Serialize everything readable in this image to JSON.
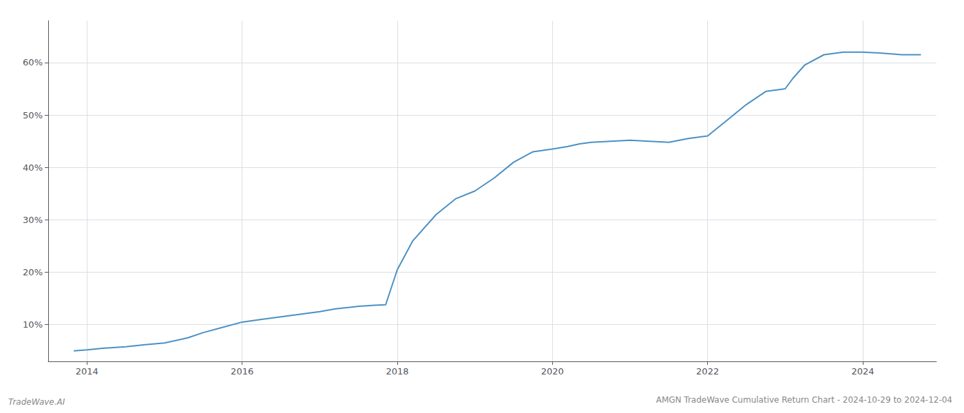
{
  "chart_data": {
    "type": "line",
    "title": "AMGN TradeWave Cumulative Return Chart - 2024-10-29 to 2024-12-04",
    "annotations": [
      "TradeWave.AI"
    ],
    "x": [
      2013.83,
      2014.0,
      2014.2,
      2014.5,
      2014.75,
      2015.0,
      2015.3,
      2015.5,
      2015.75,
      2016.0,
      2016.25,
      2016.5,
      2016.75,
      2017.0,
      2017.2,
      2017.5,
      2017.7,
      2017.85,
      2018.0,
      2018.2,
      2018.5,
      2018.75,
      2019.0,
      2019.25,
      2019.5,
      2019.75,
      2020.0,
      2020.2,
      2020.35,
      2020.5,
      2020.75,
      2021.0,
      2021.25,
      2021.5,
      2021.75,
      2022.0,
      2022.25,
      2022.5,
      2022.75,
      2023.0,
      2023.1,
      2023.25,
      2023.5,
      2023.75,
      2024.0,
      2024.25,
      2024.5,
      2024.75
    ],
    "values": [
      5.0,
      5.2,
      5.5,
      5.8,
      6.2,
      6.5,
      7.5,
      8.5,
      9.5,
      10.5,
      11.0,
      11.5,
      12.0,
      12.5,
      13.0,
      13.5,
      13.7,
      13.8,
      20.5,
      26.0,
      31.0,
      34.0,
      35.5,
      38.0,
      41.0,
      43.0,
      43.5,
      44.0,
      44.5,
      44.8,
      45.0,
      45.2,
      45.0,
      44.8,
      45.5,
      46.0,
      49.0,
      52.0,
      54.5,
      55.0,
      57.0,
      59.5,
      61.5,
      62.0,
      62.0,
      61.8,
      61.5,
      61.5
    ],
    "color": "#4a90c4",
    "xlim": [
      2013.5,
      2024.95
    ],
    "xticks": [
      2014,
      2016,
      2018,
      2020,
      2022,
      2024
    ],
    "ylim": [
      3.0,
      68.0
    ],
    "yticks": [
      {
        "value": 10,
        "label": "10%"
      },
      {
        "value": 20,
        "label": "20%"
      },
      {
        "value": 30,
        "label": "30%"
      },
      {
        "value": 40,
        "label": "40%"
      },
      {
        "value": 50,
        "label": "50%"
      },
      {
        "value": 60,
        "label": "60%"
      }
    ],
    "grid": true
  }
}
